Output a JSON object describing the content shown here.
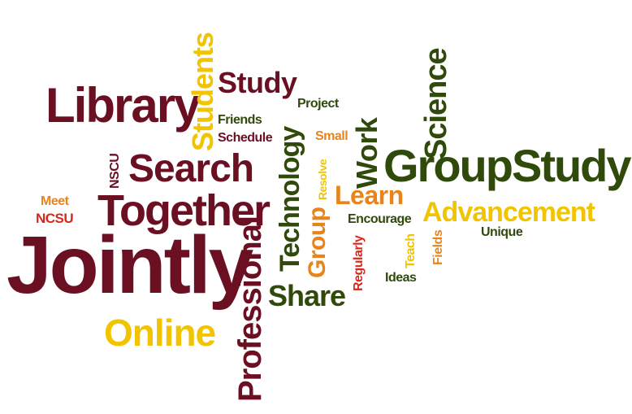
{
  "words": {
    "jointly": "Jointly",
    "library": "Library",
    "group_study": "GroupStudy",
    "together": "Together",
    "search": "Search",
    "online": "Online",
    "advancement": "Advancement",
    "science": "Science",
    "professional": "Professional",
    "students": "Students",
    "study": "Study",
    "technology": "Technology",
    "work": "Work",
    "share": "Share",
    "learn": "Learn",
    "group": "Group",
    "project": "Project",
    "friends": "Friends",
    "schedule": "Schedule",
    "small": "Small",
    "resolve": "Resolve",
    "nscu": "NSCU",
    "meet": "Meet",
    "ncsu": "NCSU",
    "encourage": "Encourage",
    "unique": "Unique",
    "teach": "Teach",
    "fields": "Fields",
    "regularly": "Regularly",
    "ideas": "Ideas"
  },
  "colors": {
    "maroon": "#6b0f22",
    "olive": "#2f4a0a",
    "gold": "#f2c400",
    "orange": "#e8841a",
    "red": "#d7291b"
  }
}
